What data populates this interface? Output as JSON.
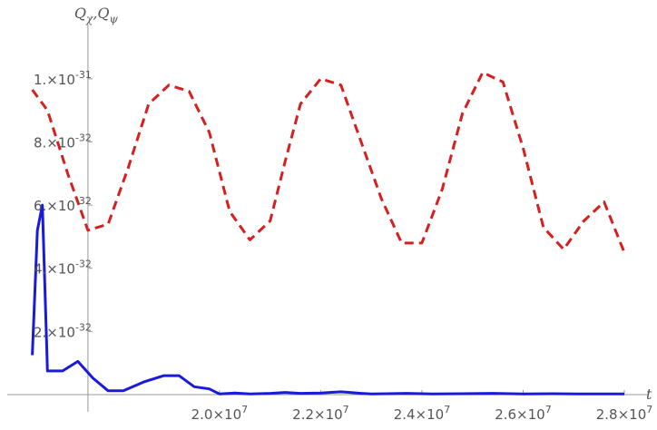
{
  "chart_data": {
    "type": "line",
    "title": "",
    "xlabel": "t",
    "ylabel": "Q_χ,Q_ψ",
    "ylabel_parts": [
      {
        "main": "Q",
        "sub": "χ"
      },
      {
        "main": ",Q",
        "sub": "ψ"
      }
    ],
    "xlim": [
      16200000,
      28000000
    ],
    "ylim": [
      0,
      1.1e-31
    ],
    "axis_origin": {
      "x": 17400000,
      "y": 0
    },
    "grid": false,
    "x_ticks": [
      {
        "value": 20000000,
        "mantissa": "2.0",
        "exponent": "7"
      },
      {
        "value": 22000000,
        "mantissa": "2.2",
        "exponent": "7"
      },
      {
        "value": 24000000,
        "mantissa": "2.4",
        "exponent": "7"
      },
      {
        "value": 26000000,
        "mantissa": "2.6",
        "exponent": "7"
      },
      {
        "value": 28000000,
        "mantissa": "2.8",
        "exponent": "7"
      }
    ],
    "y_ticks": [
      {
        "value": 2e-32,
        "mantissa": "2.",
        "exponent": "-32"
      },
      {
        "value": 4e-32,
        "mantissa": "4.",
        "exponent": "-32"
      },
      {
        "value": 6e-32,
        "mantissa": "6.",
        "exponent": "-32"
      },
      {
        "value": 8e-32,
        "mantissa": "8.",
        "exponent": "-32"
      },
      {
        "value": 1e-31,
        "mantissa": "1.",
        "exponent": "-31"
      }
    ],
    "series": [
      {
        "color": "#d62020",
        "style": "dashed",
        "x": [
          16300000,
          16600000,
          17000000,
          17400000,
          17800000,
          18200000,
          18600000,
          19000000,
          19400000,
          19800000,
          20200000,
          20600000,
          21000000,
          21300000,
          21600000,
          22000000,
          22400000,
          22800000,
          23200000,
          23600000,
          24000000,
          24400000,
          24800000,
          25200000,
          25600000,
          26000000,
          26400000,
          26800000,
          27200000,
          27600000,
          28000000
        ],
        "y": [
          9.65e-32,
          9e-32,
          7e-32,
          5.2e-32,
          5.4e-32,
          7.2e-32,
          9.2e-32,
          9.8e-32,
          9.6e-32,
          8.3e-32,
          5.8e-32,
          4.9e-32,
          5.5e-32,
          7.4e-32,
          9.2e-32,
          1e-31,
          9.8e-32,
          8e-32,
          6.2e-32,
          4.8e-32,
          4.8e-32,
          6.5e-32,
          8.9e-32,
          1.02e-31,
          9.9e-32,
          7.8e-32,
          5.3e-32,
          4.6e-32,
          5.5e-32,
          6.1e-32,
          4.5e-32
        ]
      },
      {
        "color": "#1a1adb",
        "style": "solid",
        "x": [
          16300000,
          16400000,
          16500000,
          16600000,
          16900000,
          17200000,
          17500000,
          17800000,
          18100000,
          18500000,
          18900000,
          19200000,
          19500000,
          19800000,
          20000000,
          20300000,
          20600000,
          21000000,
          21300000,
          21600000,
          22000000,
          22400000,
          22800000,
          23000000,
          23300000,
          23700000,
          24200000,
          24800000,
          25400000,
          26000000,
          26600000,
          27200000,
          28000000
        ],
        "y": [
          1.25e-32,
          5.2e-32,
          6e-32,
          7.5e-33,
          7.5e-33,
          1.05e-32,
          5.2e-33,
          1.2e-33,
          1.2e-33,
          4e-33,
          6e-33,
          6e-33,
          2.5e-33,
          1.8e-33,
          2e-34,
          5e-34,
          2e-34,
          4e-34,
          7e-34,
          4e-34,
          5e-34,
          9e-34,
          4e-34,
          2e-34,
          3e-34,
          4e-34,
          2e-34,
          3e-34,
          4e-34,
          2e-34,
          3e-34,
          2e-34,
          2e-34
        ]
      }
    ]
  }
}
